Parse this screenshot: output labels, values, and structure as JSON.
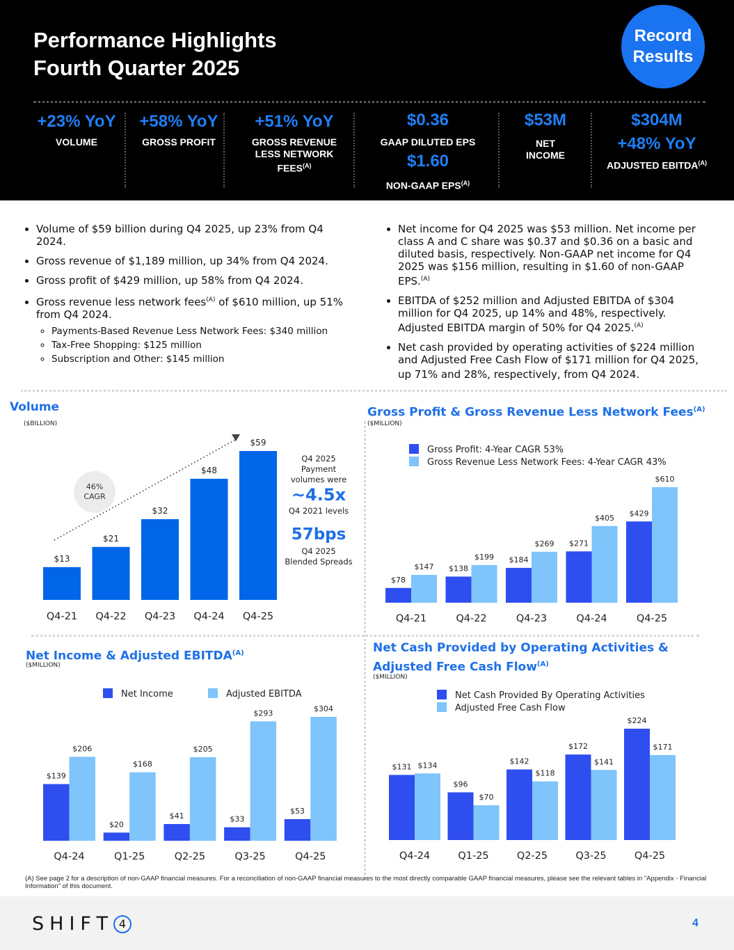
{
  "header": {
    "title_line1": "Performance Highlights",
    "title_line2": "Fourth Quarter 2025",
    "badge_line1": "Record",
    "badge_line2": "Results"
  },
  "kpis": [
    {
      "value": "+23% YoY",
      "label": "VOLUME"
    },
    {
      "value": "+58% YoY",
      "label": "GROSS PROFIT"
    },
    {
      "value": "+51% YoY",
      "label_line1": "GROSS REVENUE",
      "label_line2": "LESS NETWORK",
      "label_line3": "FEES",
      "note": "(A)"
    },
    {
      "value": "$0.36",
      "label": "GAAP DILUTED EPS",
      "value2": "$1.60",
      "label2": "NON-GAAP EPS",
      "note": "(A)"
    },
    {
      "value": "$53M",
      "label_line1": "NET",
      "label_line2": "INCOME"
    },
    {
      "value": "$304M",
      "value2": "+48% YoY",
      "label": "ADJUSTED EBITDA",
      "note": "(A)"
    }
  ],
  "bullets_left": [
    "Volume of $59 billion during Q4 2025, up 23% from Q4 2024.",
    "Gross revenue of $1,189 million, up 34% from Q4 2024.",
    "Gross profit of $429 million, up 58% from Q4 2024.",
    {
      "pre": "Gross revenue less network fees",
      "note": "(A)",
      "post": " of $610 million, up 51% from Q4 2024."
    }
  ],
  "sub_bullets_left": [
    "Payments-Based Revenue Less Network Fees: $340 million",
    "Tax-Free Shopping: $125 million",
    "Subscription and Other: $145 million"
  ],
  "bullets_right": [
    {
      "text": "Net income for Q4 2025 was $53 million. Net income per class A and C share was $0.37 and $0.36 on a basic and diluted basis, respectively. Non-GAAP net income for Q4 2025 was $156 million, resulting in $1.60 of non-GAAP EPS.",
      "note": "(A)"
    },
    {
      "text": "EBITDA of $252 million and Adjusted EBITDA of $304 million for Q4 2025, up 14% and 48%, respectively. Adjusted EBITDA margin of 50% for Q4 2025.",
      "note": "(A)"
    },
    {
      "text": "Net cash provided by operating activities of $224 million and Adjusted Free Cash Flow of $171 million for Q4 2025, up 71% and 28%, respectively, from Q4 2024.",
      "note": ""
    }
  ],
  "volume_side": {
    "cagr_line1": "46%",
    "cagr_line2": "CAGR",
    "text1_line1": "Q4 2025",
    "text1_line2": "Payment",
    "text1_line3": "volumes were",
    "big1": "~4.5x",
    "text2": "Q4 2021 levels",
    "big2": "57bps",
    "text3_line1": "Q4 2025",
    "text3_line2": "Blended Spreads"
  },
  "colors": {
    "volume_bar": "#0066e8",
    "dark_bar": "#2f4ef0",
    "light_bar": "#7fc4fb",
    "accent": "#1f70e6",
    "kpi_blue": "#1f7ff5"
  },
  "chart_data": [
    {
      "type": "bar",
      "title": "Volume",
      "unit": "($BILLION)",
      "categories": [
        "Q4-21",
        "Q4-22",
        "Q4-23",
        "Q4-24",
        "Q4-25"
      ],
      "values": [
        13,
        21,
        32,
        48,
        59
      ],
      "value_labels": [
        "$13",
        "$21",
        "$32",
        "$48",
        "$59"
      ],
      "xlabel": "",
      "ylabel": "",
      "ylim": [
        0,
        59
      ],
      "grid": false,
      "annotation": "46% CAGR"
    },
    {
      "type": "bar",
      "title": "Gross Profit & Gross Revenue Less Network Fees",
      "title_note": "(A)",
      "unit": "($MILLION)",
      "categories": [
        "Q4-21",
        "Q4-22",
        "Q4-23",
        "Q4-24",
        "Q4-25"
      ],
      "series": [
        {
          "name": "Gross Profit: 4-Year CAGR 53%",
          "values": [
            78,
            138,
            184,
            271,
            429
          ],
          "labels": [
            "$78",
            "$138",
            "$184",
            "$271",
            "$429"
          ]
        },
        {
          "name": "Gross Revenue Less Network Fees: 4-Year CAGR 43%",
          "values": [
            147,
            199,
            269,
            405,
            610
          ],
          "labels": [
            "$147",
            "$199",
            "$269",
            "$405",
            "$610"
          ]
        }
      ],
      "ylim": [
        0,
        610
      ],
      "grid": false,
      "legend": "top-left"
    },
    {
      "type": "bar",
      "title": "Net Income & Adjusted EBITDA",
      "title_note": "(A)",
      "unit": "($MILLION)",
      "categories": [
        "Q4-24",
        "Q1-25",
        "Q2-25",
        "Q3-25",
        "Q4-25"
      ],
      "series": [
        {
          "name": "Net Income",
          "values": [
            139,
            20,
            41,
            33,
            53
          ],
          "labels": [
            "$139",
            "$20",
            "$41",
            "$33",
            "$53"
          ]
        },
        {
          "name": "Adjusted EBITDA",
          "values": [
            206,
            168,
            205,
            293,
            304
          ],
          "labels": [
            "$206",
            "$168",
            "$205",
            "$293",
            "$304"
          ]
        }
      ],
      "ylim": [
        0,
        304
      ],
      "grid": false,
      "legend": "top-center"
    },
    {
      "type": "bar",
      "title_line1": "Net Cash Provided by Operating Activities &",
      "title_line2": "Adjusted Free Cash Flow",
      "title_note": "(A)",
      "unit": "($MILLION)",
      "categories": [
        "Q4-24",
        "Q1-25",
        "Q2-25",
        "Q3-25",
        "Q4-25"
      ],
      "series": [
        {
          "name": "Net Cash Provided By Operating Activities",
          "values": [
            131,
            96,
            142,
            172,
            224
          ],
          "labels": [
            "$131",
            "$96",
            "$142",
            "$172",
            "$224"
          ]
        },
        {
          "name": "Adjusted Free Cash Flow",
          "values": [
            134,
            70,
            118,
            141,
            171
          ],
          "labels": [
            "$134",
            "$70",
            "$118",
            "$141",
            "$171"
          ]
        }
      ],
      "ylim": [
        0,
        224
      ],
      "grid": false,
      "legend": "top-left"
    }
  ],
  "footnote": "(A) See page 2 for a description of non-GAAP financial measures. For a reconciliation of non-GAAP financial measures to the most directly comparable GAAP financial measures, please see the relevant tables in \"Appendix - Financial Information\" of this document.",
  "footer": {
    "logo_text": "SHIFT",
    "logo_digit": "4",
    "page_number": "4"
  }
}
